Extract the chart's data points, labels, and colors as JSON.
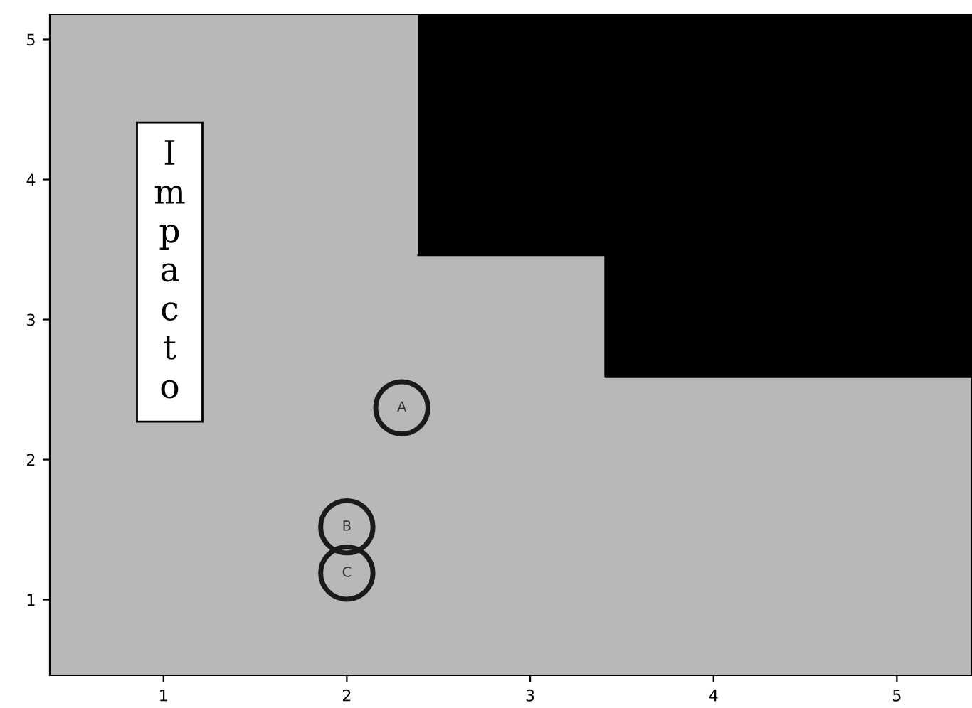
{
  "chart_data": {
    "type": "scatter",
    "ylabel": "Impacto",
    "xlim": [
      0.38,
      5.41
    ],
    "ylim": [
      0.46,
      5.18
    ],
    "xticks": [
      1,
      2,
      3,
      4,
      5
    ],
    "yticks": [
      1,
      2,
      3,
      4,
      5
    ],
    "grid": false,
    "legend": false,
    "marker": "circle",
    "series": [
      {
        "type": "line",
        "marker": "none",
        "color": "#000000",
        "x": [
          2.39,
          3.41,
          3.41,
          5.41
        ],
        "values": [
          3.46,
          3.46,
          2.59,
          2.59
        ],
        "lower": [
          3.46,
          3.46,
          2.59,
          2.59
        ],
        "upper": [
          5.18,
          5.18,
          5.18,
          5.18
        ]
      },
      {
        "color": "#1a1a1a",
        "x": [
          2.3,
          2.0,
          2.0
        ],
        "values": [
          2.37,
          1.52,
          1.19
        ],
        "value_labels": [
          "A",
          "B",
          "C"
        ]
      }
    ]
  }
}
